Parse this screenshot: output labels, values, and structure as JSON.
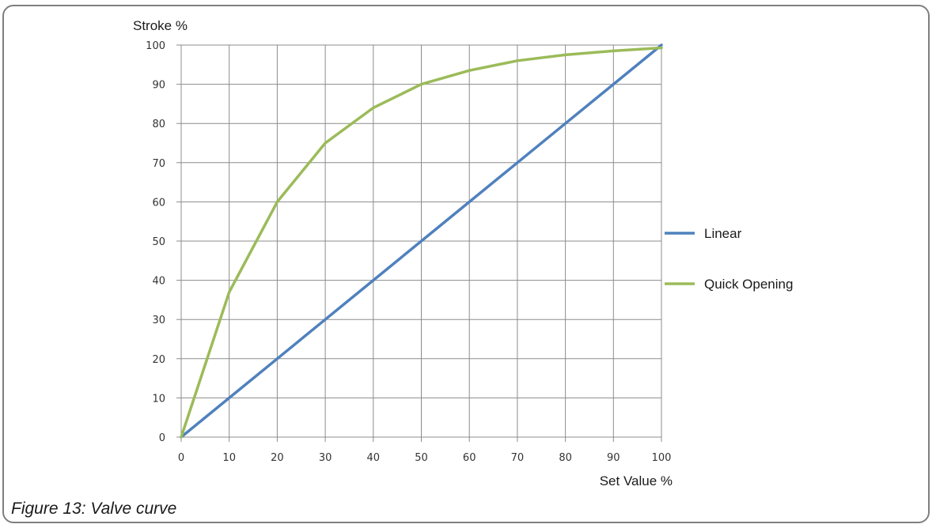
{
  "caption": "Figure 13: Valve curve",
  "chart_data": {
    "type": "line",
    "title": "",
    "xlabel": "Set Value %",
    "ylabel": "Stroke %",
    "xlim": [
      0,
      100
    ],
    "ylim": [
      0,
      100
    ],
    "xticks": [
      "0",
      "10",
      "20",
      "30",
      "40",
      "50",
      "60",
      "70",
      "80",
      "90",
      "100"
    ],
    "yticks": [
      "0",
      "10",
      "20",
      "30",
      "40",
      "50",
      "60",
      "70",
      "80",
      "90",
      "100"
    ],
    "grid": true,
    "legend_position": "right",
    "series": [
      {
        "name": "Linear",
        "color": "#4f81bd",
        "x": [
          0,
          10,
          20,
          30,
          40,
          50,
          60,
          70,
          80,
          90,
          100
        ],
        "y": [
          0,
          10,
          20,
          30,
          40,
          50,
          60,
          70,
          80,
          90,
          100
        ]
      },
      {
        "name": "Quick Opening",
        "color": "#9bbb59",
        "x": [
          0,
          10,
          20,
          30,
          40,
          50,
          60,
          70,
          80,
          90,
          100
        ],
        "y": [
          0,
          37,
          60,
          75,
          84,
          90,
          93.5,
          96,
          97.5,
          98.5,
          99.3
        ]
      }
    ]
  }
}
